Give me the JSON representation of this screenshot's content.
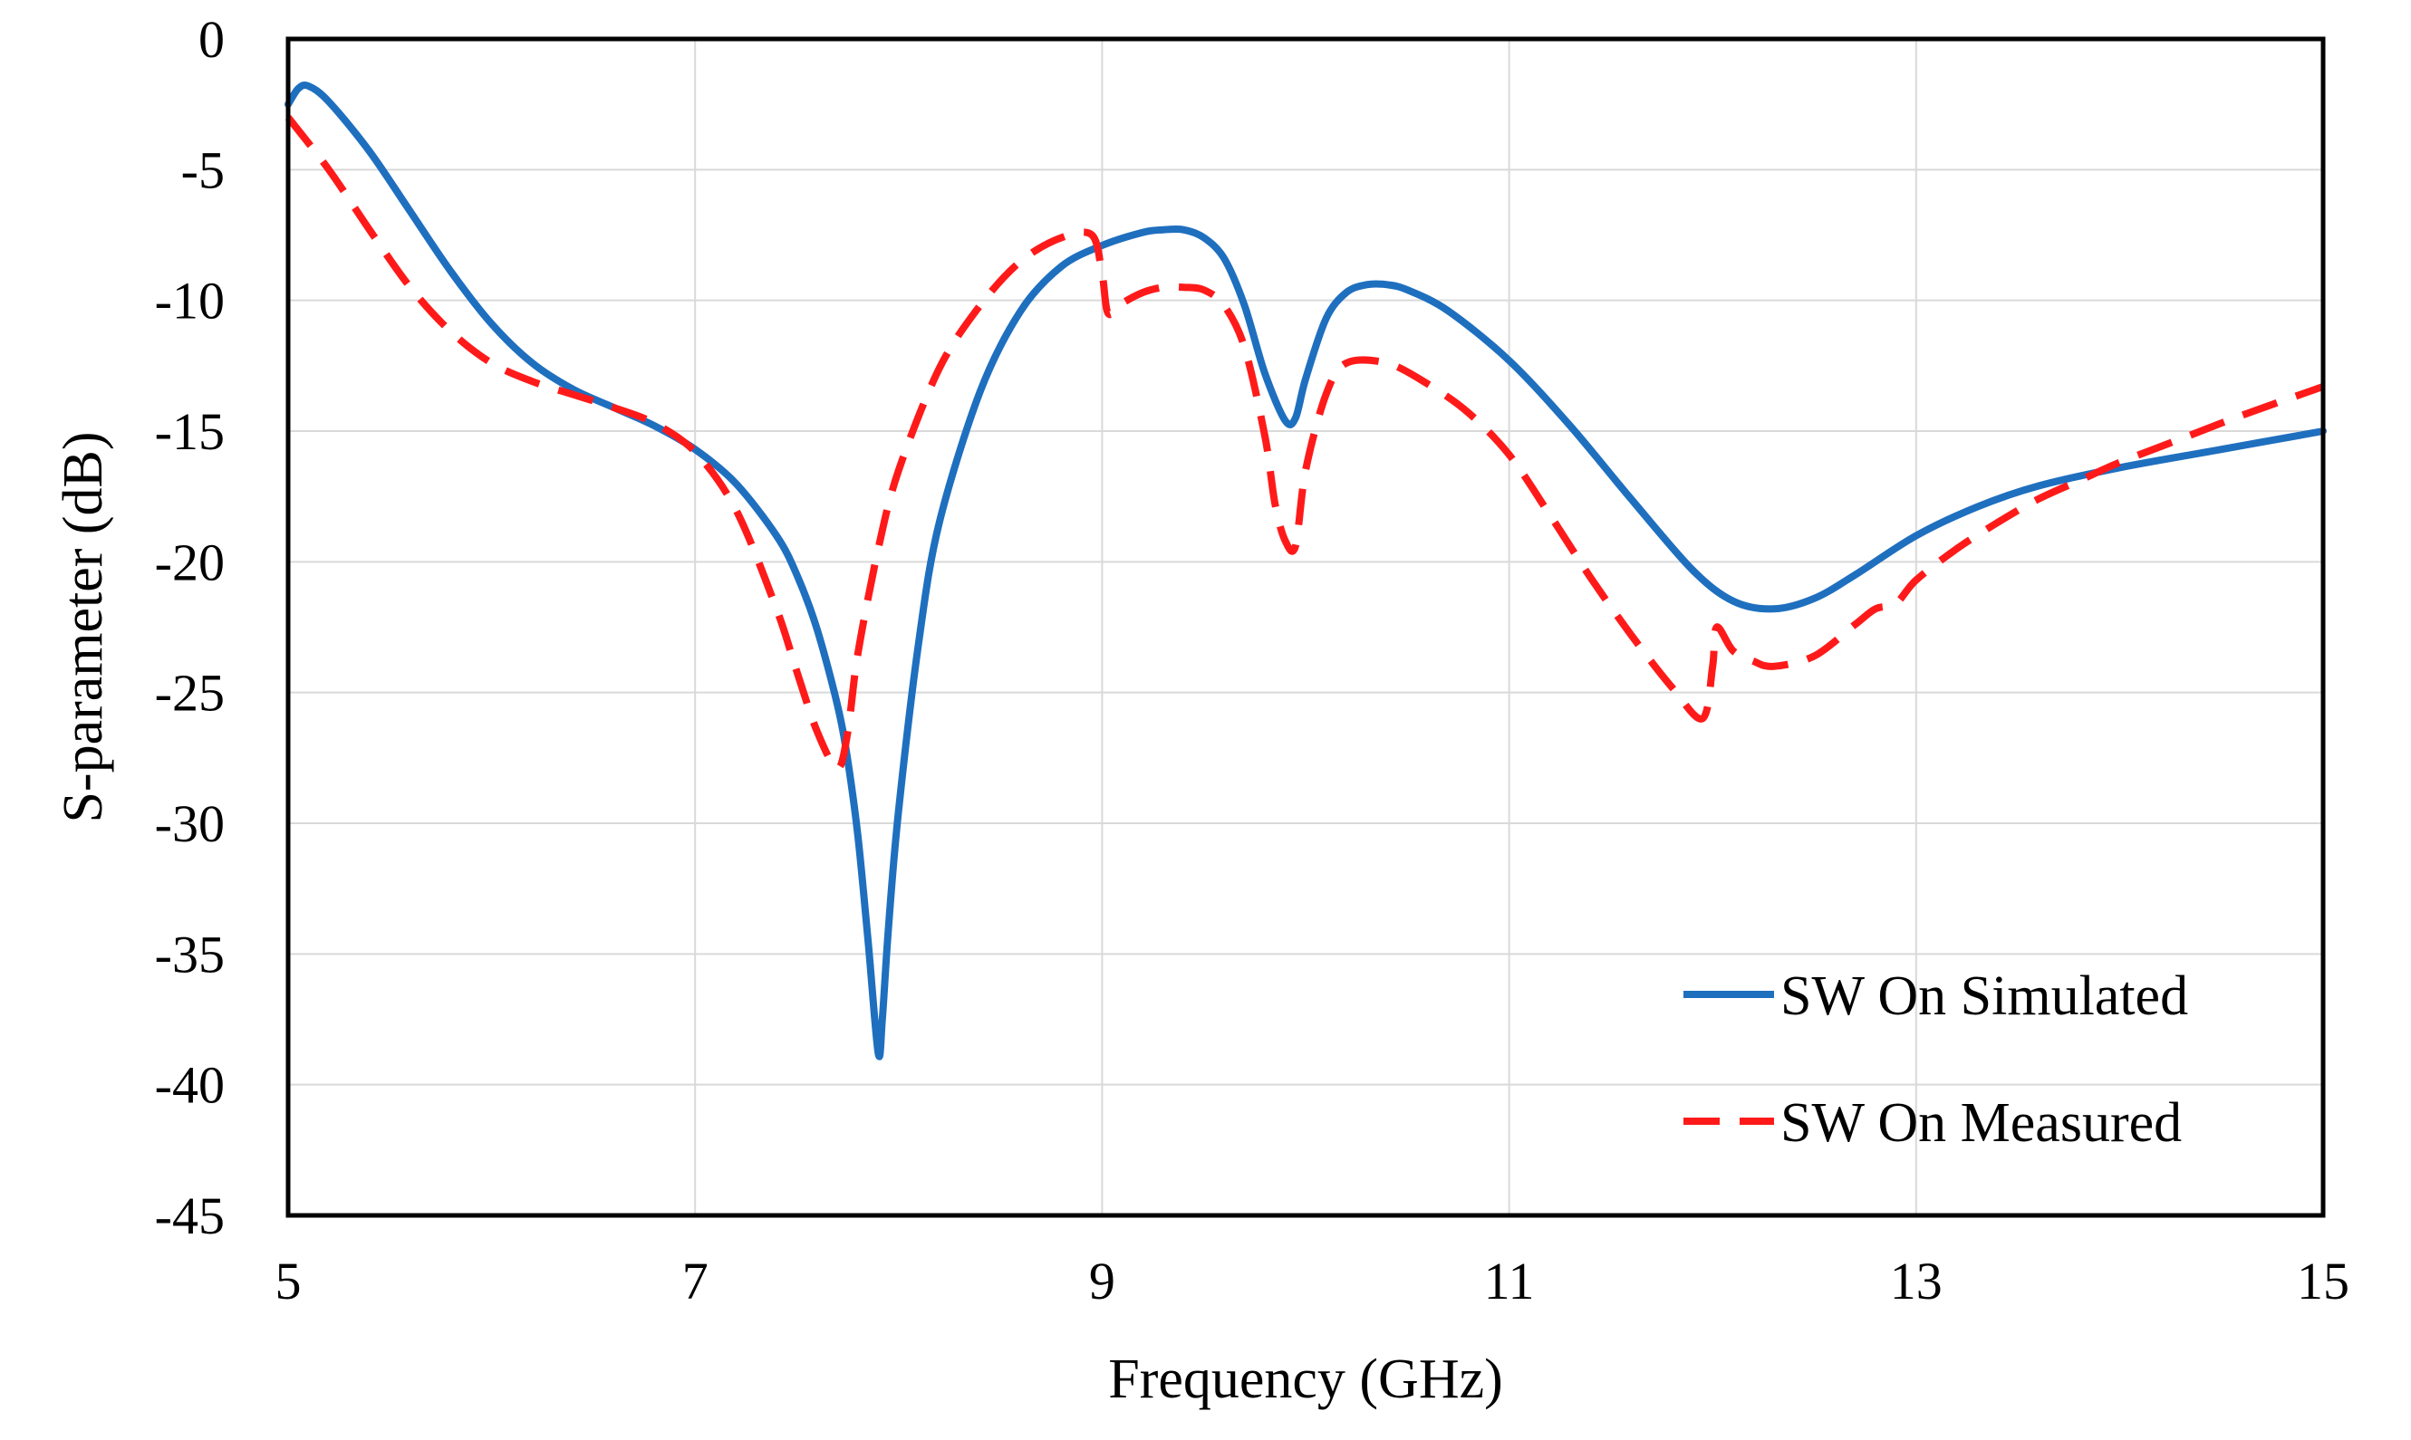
{
  "chart_data": {
    "type": "line",
    "title": "",
    "xlabel": "Frequency (GHz)",
    "ylabel": "S-parameter (dB)",
    "xlim": [
      5,
      15
    ],
    "ylim": [
      -45,
      0
    ],
    "xticks": [
      5,
      7,
      9,
      11,
      13,
      15
    ],
    "yticks": [
      0,
      -5,
      -10,
      -15,
      -20,
      -25,
      -30,
      -35,
      -40,
      -45
    ],
    "xtick_labels": [
      "5",
      "7",
      "9",
      "11",
      "13",
      "15"
    ],
    "ytick_labels": [
      "0",
      "-5",
      "-10",
      "-15",
      "-20",
      "-25",
      "-30",
      "-35",
      "-40",
      "-45"
    ],
    "grid": true,
    "legend_position": "bottom-right",
    "series": [
      {
        "name": "SW On Simulated",
        "color": "#1f6fbf",
        "style": "solid",
        "x": [
          5.0,
          5.05,
          5.1,
          5.2,
          5.4,
          5.6,
          5.8,
          6.0,
          6.2,
          6.4,
          6.6,
          6.8,
          7.0,
          7.2,
          7.4,
          7.5,
          7.6,
          7.7,
          7.75,
          7.8,
          7.85,
          7.9,
          7.92,
          7.95,
          8.0,
          8.1,
          8.2,
          8.4,
          8.6,
          8.8,
          9.0,
          9.2,
          9.3,
          9.4,
          9.5,
          9.6,
          9.7,
          9.8,
          9.9,
          9.95,
          10.0,
          10.1,
          10.2,
          10.3,
          10.4,
          10.5,
          10.7,
          11.0,
          11.3,
          11.6,
          11.9,
          12.1,
          12.3,
          12.5,
          12.7,
          13.0,
          13.3,
          13.6,
          14.0,
          14.5,
          15.0
        ],
        "y": [
          -2.5,
          -1.9,
          -1.8,
          -2.4,
          -4.3,
          -6.6,
          -8.9,
          -10.9,
          -12.4,
          -13.4,
          -14.1,
          -14.8,
          -15.7,
          -17.0,
          -19.0,
          -20.5,
          -22.6,
          -25.5,
          -27.6,
          -30.5,
          -34.5,
          -38.8,
          -37.5,
          -34.0,
          -29.5,
          -23.0,
          -18.5,
          -13.5,
          -10.4,
          -8.7,
          -7.9,
          -7.4,
          -7.3,
          -7.3,
          -7.6,
          -8.4,
          -10.2,
          -12.8,
          -14.6,
          -14.5,
          -13.0,
          -10.7,
          -9.7,
          -9.4,
          -9.4,
          -9.6,
          -10.4,
          -12.3,
          -14.8,
          -17.6,
          -20.3,
          -21.5,
          -21.8,
          -21.4,
          -20.5,
          -19.0,
          -17.9,
          -17.1,
          -16.4,
          -15.7,
          -15.0
        ]
      },
      {
        "name": "SW On Measured",
        "color": "#ff1a1a",
        "style": "dashed",
        "x": [
          5.0,
          5.2,
          5.4,
          5.6,
          5.8,
          6.0,
          6.2,
          6.4,
          6.6,
          6.8,
          7.0,
          7.2,
          7.4,
          7.5,
          7.6,
          7.7,
          7.75,
          7.8,
          7.9,
          8.0,
          8.2,
          8.4,
          8.6,
          8.8,
          8.95,
          9.0,
          9.03,
          9.1,
          9.2,
          9.3,
          9.4,
          9.5,
          9.6,
          9.7,
          9.8,
          9.85,
          9.9,
          9.95,
          10.0,
          10.1,
          10.2,
          10.4,
          10.6,
          10.8,
          11.0,
          11.2,
          11.4,
          11.6,
          11.8,
          11.95,
          12.0,
          12.02,
          12.1,
          12.2,
          12.3,
          12.5,
          12.7,
          12.8,
          12.9,
          13.0,
          13.2,
          13.4,
          13.6,
          13.8,
          14.0,
          14.3,
          14.6,
          15.0
        ],
        "y": [
          -3.0,
          -5.0,
          -7.3,
          -9.5,
          -11.2,
          -12.4,
          -13.1,
          -13.6,
          -14.1,
          -14.7,
          -15.8,
          -18.0,
          -21.8,
          -24.2,
          -26.5,
          -27.9,
          -26.5,
          -23.5,
          -19.5,
          -16.5,
          -12.6,
          -10.2,
          -8.5,
          -7.6,
          -7.5,
          -9.0,
          -10.5,
          -10.1,
          -9.7,
          -9.5,
          -9.5,
          -9.6,
          -10.2,
          -11.8,
          -15.2,
          -17.8,
          -19.2,
          -19.4,
          -16.5,
          -13.6,
          -12.4,
          -12.4,
          -13.2,
          -14.3,
          -15.9,
          -18.2,
          -20.6,
          -22.8,
          -24.8,
          -26.0,
          -24.0,
          -22.5,
          -23.4,
          -23.8,
          -24.0,
          -23.6,
          -22.4,
          -21.8,
          -21.6,
          -20.7,
          -19.5,
          -18.5,
          -17.6,
          -16.9,
          -16.2,
          -15.3,
          -14.4,
          -13.3
        ]
      }
    ]
  }
}
